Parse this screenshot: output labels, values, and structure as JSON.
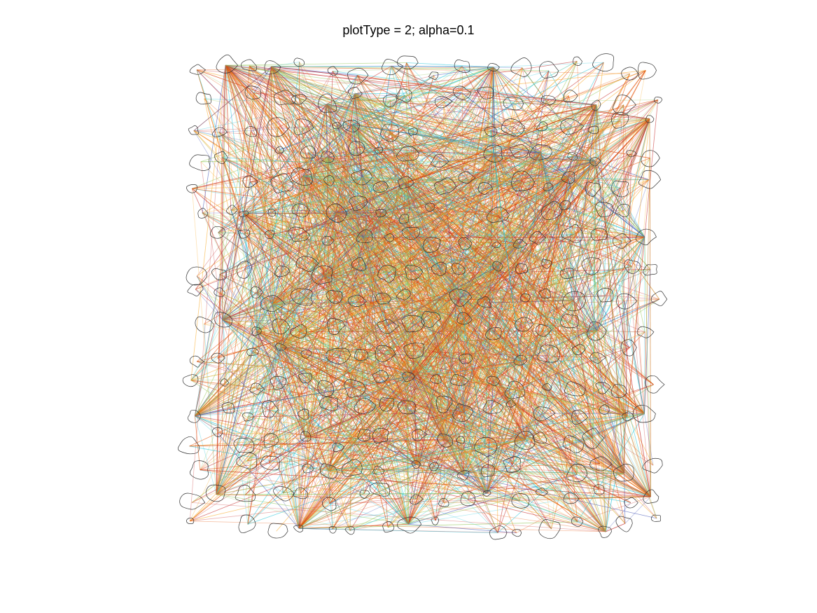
{
  "figure": {
    "title": "plotType = 2; alpha=0.1"
  },
  "diagram": {
    "node_shape": "irregular closed outline",
    "node_outline_color": "#333333",
    "edge_opacity": 0.1,
    "edge_palette": [
      "#c62828",
      "#e65100",
      "#f9a825",
      "#9ccc65",
      "#26c6da",
      "#3f51b5"
    ],
    "approx_node_count": 300,
    "approx_edge_count": 4000
  }
}
